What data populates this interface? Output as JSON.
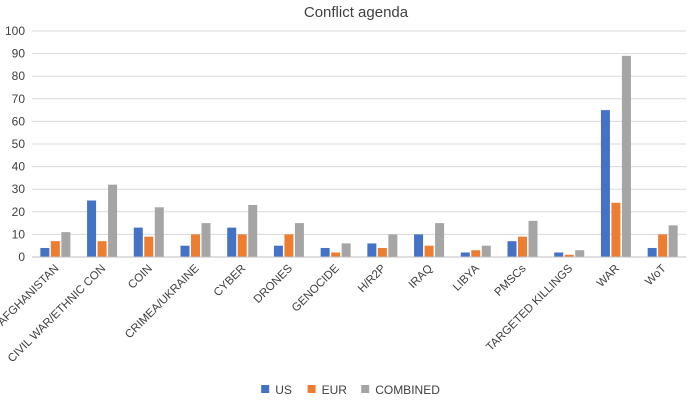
{
  "chart_data": {
    "type": "bar",
    "title": "Conflict agenda",
    "xlabel": "",
    "ylabel": "",
    "ylim": [
      0,
      100
    ],
    "yticks": [
      0,
      10,
      20,
      30,
      40,
      50,
      60,
      70,
      80,
      90,
      100
    ],
    "grid": true,
    "legend_position": "bottom",
    "categories": [
      "AFGHANISTAN",
      "CIVIL WAR/ETHNIC CON",
      "COIN",
      "CRIMEA/UKRAINE",
      "CYBER",
      "DRONES",
      "GENOCIDE",
      "H/R2P",
      "IRAQ",
      "LIBYA",
      "PMSCs",
      "TARGETED KILLINGS",
      "WAR",
      "WoT"
    ],
    "series": [
      {
        "name": "US",
        "color": "#4472C4",
        "values": [
          4,
          25,
          13,
          5,
          13,
          5,
          4,
          6,
          10,
          2,
          7,
          2,
          65,
          4
        ]
      },
      {
        "name": "EUR",
        "color": "#ED7D31",
        "values": [
          7,
          7,
          9,
          10,
          10,
          10,
          2,
          4,
          5,
          3,
          9,
          1,
          24,
          10
        ]
      },
      {
        "name": "COMBINED",
        "color": "#A5A5A5",
        "values": [
          11,
          32,
          22,
          15,
          23,
          15,
          6,
          10,
          15,
          5,
          16,
          3,
          89,
          14
        ]
      }
    ]
  }
}
